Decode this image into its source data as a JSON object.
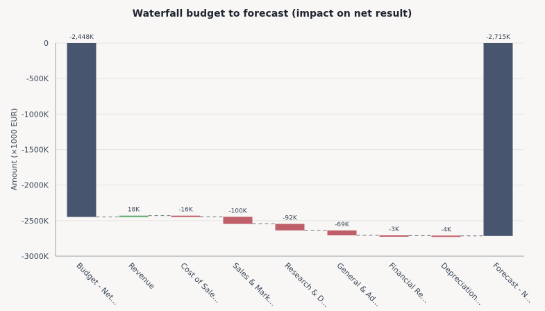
{
  "chart_data": {
    "type": "waterfall",
    "title": "Waterfall budget to forecast (impact on net result)",
    "ylabel": "Amount (×1000 EUR)",
    "xlabel": "",
    "ylim": [
      -3000,
      0
    ],
    "yticks": [
      0,
      -500,
      -1000,
      -1500,
      -2000,
      -2500,
      -3000
    ],
    "ytick_labels": [
      "0",
      "-500K",
      "-1000K",
      "-1500K",
      "-2000K",
      "-2500K",
      "-3000K"
    ],
    "grid": true,
    "categories": [
      "Budget - Net...",
      "Revenue",
      "Cost of Sale...",
      "Sales & Mark...",
      "Research & D...",
      "General & Ad...",
      "Financial Re...",
      "Depreciation...",
      "Forecast - N..."
    ],
    "values": [
      -2448,
      18,
      -16,
      -100,
      -92,
      -69,
      -3,
      -4,
      -2715
    ],
    "kinds": [
      "total",
      "delta",
      "delta",
      "delta",
      "delta",
      "delta",
      "delta",
      "delta",
      "total"
    ],
    "data_labels": [
      "-2,448K",
      "18K",
      "-16K",
      "-100K",
      "-92K",
      "-69K",
      "-3K",
      "-4K",
      "-2,715K"
    ],
    "colors": {
      "total": "#47566e",
      "increase": "#5aa867",
      "decrease": "#bf5f69",
      "connector": "#6b7280",
      "grid": "#e6e4e0",
      "axis": "#9aa0a8"
    }
  }
}
